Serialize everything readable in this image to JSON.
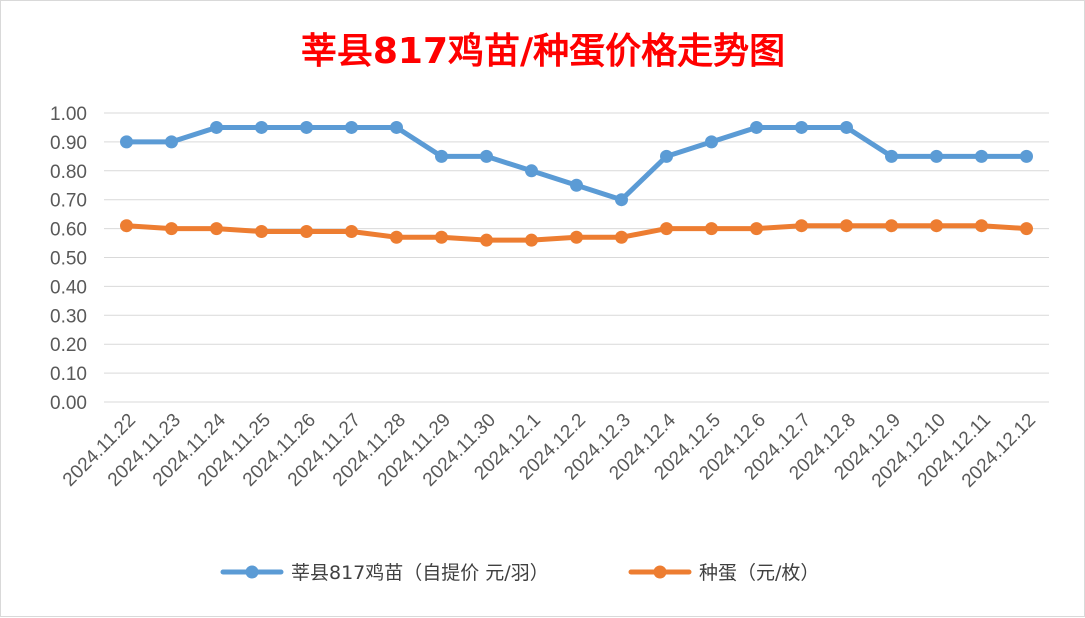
{
  "chart_data": {
    "type": "line",
    "title": "莘县817鸡苗/种蛋价格走势图",
    "title_color": "#ff0000",
    "categories": [
      "2024.11.22",
      "2024.11.23",
      "2024.11.24",
      "2024.11.25",
      "2024.11.26",
      "2024.11.27",
      "2024.11.28",
      "2024.11.29",
      "2024.11.30",
      "2024.12.1",
      "2024.12.2",
      "2024.12.3",
      "2024.12.4",
      "2024.12.5",
      "2024.12.6",
      "2024.12.7",
      "2024.12.8",
      "2024.12.9",
      "2024.12.10",
      "2024.12.11",
      "2024.12.12"
    ],
    "series": [
      {
        "name": "莘县817鸡苗（自提价 元/羽）",
        "color": "#5b9bd5",
        "values": [
          0.9,
          0.9,
          0.95,
          0.95,
          0.95,
          0.95,
          0.95,
          0.85,
          0.85,
          0.8,
          0.75,
          0.7,
          0.85,
          0.9,
          0.95,
          0.95,
          0.95,
          0.85,
          0.85,
          0.85,
          0.85
        ]
      },
      {
        "name": "种蛋（元/枚）",
        "color": "#ed7d31",
        "values": [
          0.61,
          0.6,
          0.6,
          0.59,
          0.59,
          0.59,
          0.57,
          0.57,
          0.56,
          0.56,
          0.57,
          0.57,
          0.6,
          0.6,
          0.6,
          0.61,
          0.61,
          0.61,
          0.61,
          0.61,
          0.6
        ]
      }
    ],
    "ylim": [
      0,
      1.0
    ],
    "yticks": [
      "0.00",
      "0.10",
      "0.20",
      "0.30",
      "0.40",
      "0.50",
      "0.60",
      "0.70",
      "0.80",
      "0.90",
      "1.00"
    ],
    "grid": true,
    "legend_position": "bottom",
    "xlabel": "",
    "ylabel": ""
  }
}
